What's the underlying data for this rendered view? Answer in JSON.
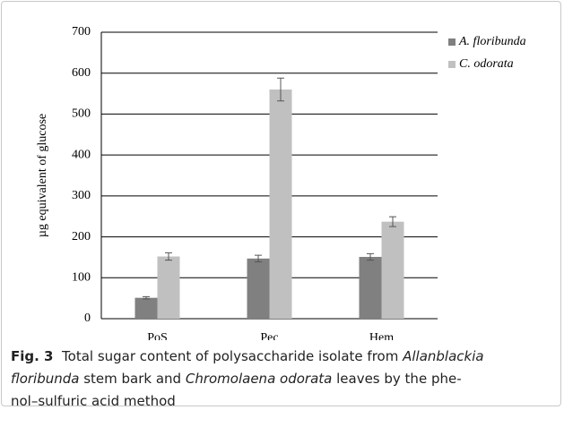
{
  "chart_data": {
    "type": "bar",
    "y_label": "µg equivalent of glucose",
    "categories": [
      "PoS",
      "Pec",
      "Hem"
    ],
    "series": [
      {
        "name": "A. floribunda",
        "color": "#808080",
        "values": [
          51,
          147,
          151
        ],
        "errors": [
          3,
          8,
          8
        ]
      },
      {
        "name": "C. odorata",
        "color": "#c0c0c0",
        "values": [
          152,
          560,
          237
        ],
        "errors": [
          9,
          28,
          12
        ]
      }
    ],
    "ylim": [
      0,
      700
    ],
    "yticks": [
      0,
      100,
      200,
      300,
      400,
      500,
      600,
      700
    ],
    "grid": true,
    "legend": "right"
  },
  "caption": {
    "label": "Fig. 3",
    "segments": [
      "Total sugar content of polysaccharide isolate from ",
      "Allanblackia",
      "floribunda",
      " stem bark  and ",
      "Chromolaena odorata",
      " leaves by the phe-",
      "nol–sulfuric acid method"
    ]
  }
}
